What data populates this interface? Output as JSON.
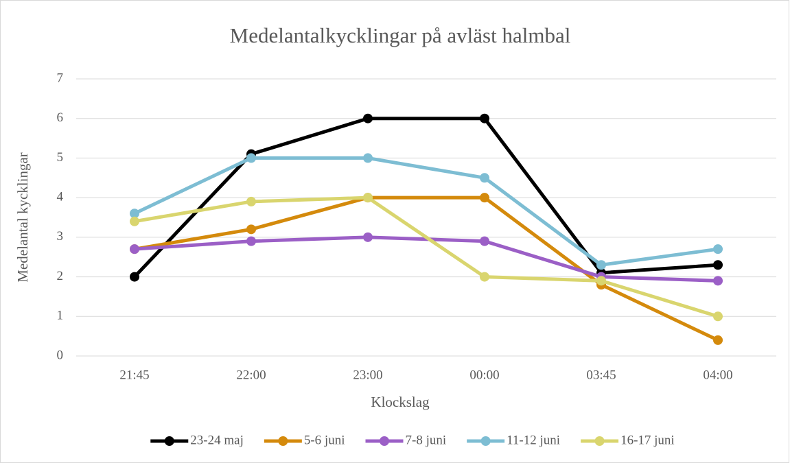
{
  "chart_data": {
    "type": "line",
    "title": "Medelantalkycklingar på avläst halmbal",
    "x_label": "Klockslag",
    "y_label": "Medelantal kycklingar",
    "categories": [
      "21:45",
      "22:00",
      "23:00",
      "00:00",
      "03:45",
      "04:00"
    ],
    "series": [
      {
        "name": "23-24 maj",
        "color": "#000000",
        "values": [
          2,
          5.1,
          6,
          6,
          2.1,
          2.3
        ]
      },
      {
        "name": "5-6 juni",
        "color": "#d48a0c",
        "values": [
          2.7,
          3.2,
          4,
          4,
          1.8,
          0.4
        ]
      },
      {
        "name": "7-8 juni",
        "color": "#9b5fc6",
        "values": [
          2.7,
          2.9,
          3,
          2.9,
          2,
          1.9
        ]
      },
      {
        "name": "11-12 juni",
        "color": "#7dbdd3",
        "values": [
          3.6,
          5,
          5,
          4.5,
          2.3,
          2.7
        ]
      },
      {
        "name": "16-17 juni",
        "color": "#d9d56e",
        "values": [
          3.4,
          3.9,
          4,
          2,
          1.9,
          1
        ]
      }
    ],
    "ylim": [
      0,
      7
    ],
    "yticks": [
      0,
      1,
      2,
      3,
      4,
      5,
      6,
      7
    ],
    "grid": true,
    "legend": "bottom"
  }
}
